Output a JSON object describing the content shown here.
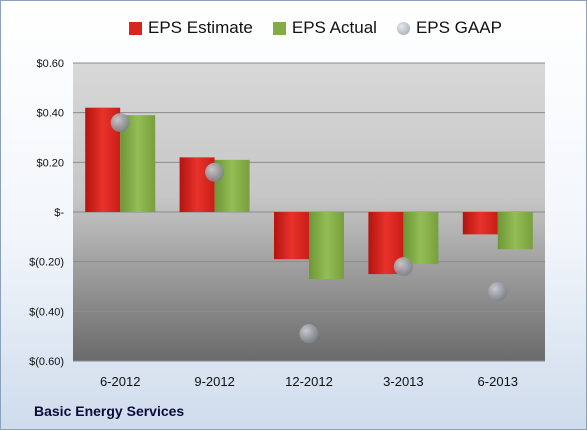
{
  "chart_data": {
    "type": "bar",
    "categories": [
      "6-2012",
      "9-2012",
      "12-2012",
      "3-2013",
      "6-2013"
    ],
    "series": [
      {
        "name": "EPS Estimate",
        "values": [
          0.42,
          0.22,
          -0.19,
          -0.25,
          -0.09
        ],
        "color": "#d9241f"
      },
      {
        "name": "EPS Actual",
        "values": [
          0.39,
          0.21,
          -0.27,
          -0.21,
          -0.15
        ],
        "color": "#83ac46"
      },
      {
        "name": "EPS GAAP",
        "values": [
          0.36,
          0.16,
          -0.49,
          -0.22,
          -0.32
        ],
        "color": "#a9acb0",
        "marker": "circle"
      }
    ],
    "yticks": [
      0.6,
      0.4,
      0.2,
      0,
      -0.2,
      -0.4,
      -0.6
    ],
    "ytick_labels": [
      "$0.60",
      "$0.40",
      "$0.20",
      "$-",
      "$(0.20)",
      "$(0.40)",
      "$(0.60)"
    ],
    "ylim": [
      -0.6,
      0.6
    ],
    "legend_position": "top",
    "grid": true
  },
  "company": "Basic Energy Services"
}
